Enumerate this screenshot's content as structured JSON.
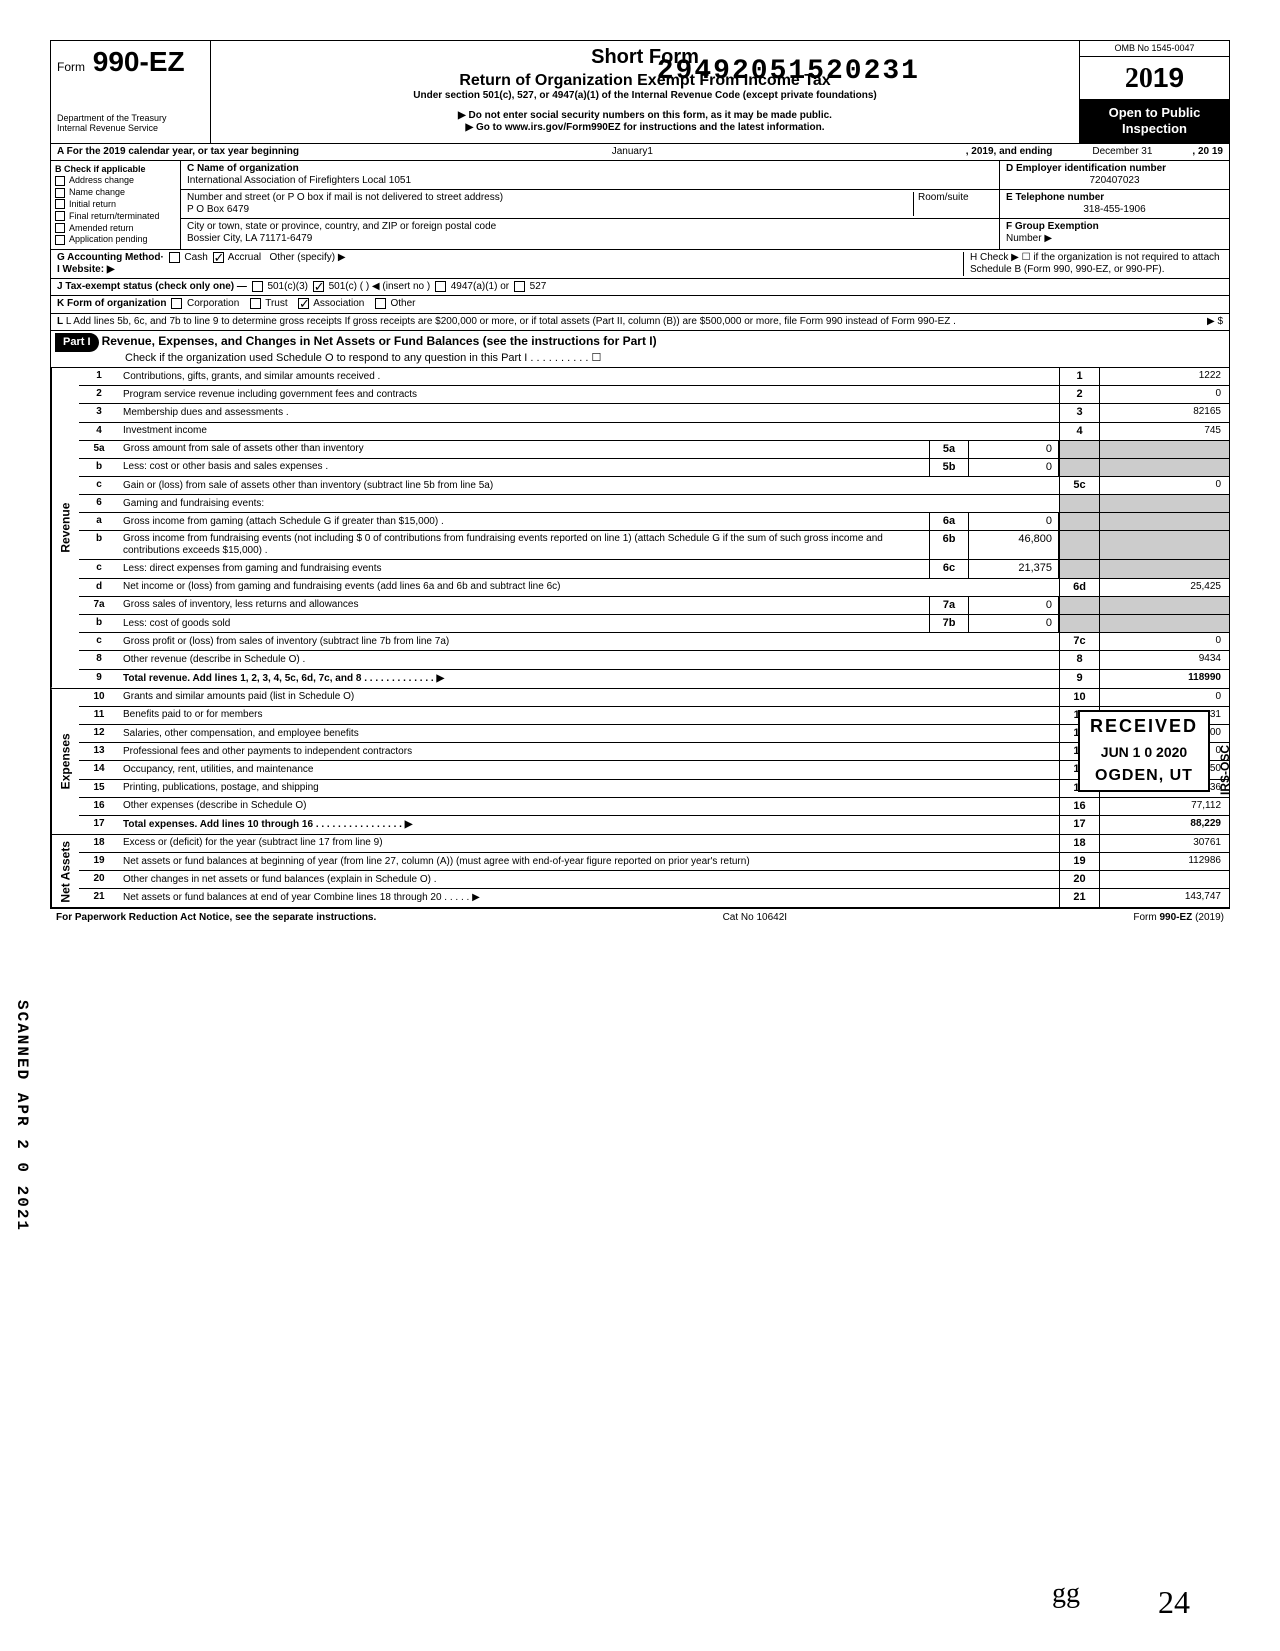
{
  "stamp_number": "29492051520231",
  "form": {
    "prefix": "Form",
    "number": "990-EZ",
    "title_short": "Short Form",
    "title": "Return of Organization Exempt From Income Tax",
    "subtitle": "Under section 501(c), 527, or 4947(a)(1) of the Internal Revenue Code (except private foundations)",
    "ssn_warn": "▶ Do not enter social security numbers on this form, as it may be made public.",
    "goto": "▶ Go to www.irs.gov/Form990EZ for instructions and the latest information.",
    "dept": "Department of the Treasury",
    "irs": "Internal Revenue Service",
    "omb": "OMB No 1545-0047",
    "year": "2019",
    "open1": "Open to Public",
    "open2": "Inspection"
  },
  "rowA": {
    "label": "A For the 2019 calendar year, or tax year beginning",
    "begin": "January1",
    "mid": ", 2019, and ending",
    "end": "December 31",
    "yr": ", 20  19"
  },
  "colB": {
    "header": "B Check if applicable",
    "items": [
      "Address change",
      "Name change",
      "Initial return",
      "Final return/terminated",
      "Amended return",
      "Application pending"
    ]
  },
  "org": {
    "c_label": "C Name of organization",
    "name": "International Association of Firefighters Local 1051",
    "addr_label": "Number and street (or P O  box if mail is not delivered to street address)",
    "room_label": "Room/suite",
    "addr": "P O  Box 6479",
    "city_label": "City or town, state or province, country, and ZIP or foreign postal code",
    "city": "Bossier City, LA 71171-6479"
  },
  "right": {
    "d_label": "D Employer identification number",
    "ein": "720407023",
    "e_label": "E Telephone number",
    "phone": "318-455-1906",
    "f_label": "F Group Exemption",
    "f_sub": "Number ▶"
  },
  "lineG": "G  Accounting Method·",
  "g_cash": "Cash",
  "g_accrual": "Accrual",
  "g_other": "Other (specify) ▶",
  "lineI": "I  Website: ▶",
  "lineH": "H Check ▶ ☐ if the organization is not required to attach Schedule B (Form 990, 990-EZ, or 990-PF).",
  "lineJ": "J  Tax-exempt status (check only one) —",
  "j_5013": "501(c)(3)",
  "j_501c": "501(c) (",
  "j_insert": ") ◀ (insert no )",
  "j_4947": "4947(a)(1) or",
  "j_527": "527",
  "lineK": "K  Form of organization",
  "k_corp": "Corporation",
  "k_trust": "Trust",
  "k_assoc": "Association",
  "k_other": "Other",
  "lineL": "L  Add lines 5b, 6c, and 7b to line 9 to determine gross receipts  If gross receipts are $200,000 or more, or if total assets (Part II, column (B)) are $500,000 or more, file Form 990 instead of Form 990-EZ .",
  "L_arrow": "▶   $",
  "part1": {
    "label": "Part I",
    "title": "Revenue, Expenses, and Changes in Net Assets or Fund Balances (see the instructions for Part I)",
    "check": "Check if the organization used Schedule O to respond to any question in this Part I  .  .  .  .  .  .  .  .  .  .  ☐"
  },
  "sidelabels": {
    "rev": "Revenue",
    "exp": "Expenses",
    "net": "Net Assets"
  },
  "rows": {
    "1": {
      "n": "1",
      "d": "Contributions, gifts, grants, and similar amounts received .",
      "v": "1222"
    },
    "2": {
      "n": "2",
      "d": "Program service revenue including government fees and contracts",
      "v": "0"
    },
    "3": {
      "n": "3",
      "d": "Membership dues and assessments .",
      "v": "82165"
    },
    "4": {
      "n": "4",
      "d": "Investment income",
      "v": "745"
    },
    "5a": {
      "n": "5a",
      "d": "Gross amount from sale of assets other than inventory",
      "mn": "5a",
      "mv": "0"
    },
    "5b": {
      "n": "b",
      "d": "Less: cost or other basis and sales expenses .",
      "mn": "5b",
      "mv": "0"
    },
    "5c": {
      "n": "c",
      "d": "Gain or (loss) from sale of assets other than inventory (subtract line 5b from line 5a)",
      "rn": "5c",
      "v": "0"
    },
    "6": {
      "n": "6",
      "d": "Gaming and fundraising events:"
    },
    "6a": {
      "n": "a",
      "d": "Gross income from gaming (attach Schedule G if greater than $15,000) .",
      "mn": "6a",
      "mv": "0"
    },
    "6b": {
      "n": "b",
      "d": "Gross income from fundraising events (not including  $              0 of contributions from fundraising events reported on line 1) (attach Schedule G if the sum of such gross income and contributions exceeds $15,000) .",
      "mn": "6b",
      "mv": "46,800"
    },
    "6c": {
      "n": "c",
      "d": "Less: direct expenses from gaming and fundraising events",
      "mn": "6c",
      "mv": "21,375"
    },
    "6d": {
      "n": "d",
      "d": "Net income or (loss) from gaming and fundraising events (add lines 6a and 6b and subtract line 6c)",
      "rn": "6d",
      "v": "25,425"
    },
    "7a": {
      "n": "7a",
      "d": "Gross sales of inventory, less returns and allowances",
      "mn": "7a",
      "mv": "0"
    },
    "7b": {
      "n": "b",
      "d": "Less: cost of goods sold",
      "mn": "7b",
      "mv": "0"
    },
    "7c": {
      "n": "c",
      "d": "Gross profit or (loss) from sales of inventory (subtract line 7b from line 7a)",
      "rn": "7c",
      "v": "0"
    },
    "8": {
      "n": "8",
      "d": "Other revenue (describe in Schedule O) .",
      "v": "9434"
    },
    "9": {
      "n": "9",
      "d": "Total revenue. Add lines 1, 2, 3, 4, 5c, 6d, 7c, and 8   .   .   .   .   .   .   .   .   .   .   .   .   .   ▶",
      "v": "118990",
      "bold": true
    },
    "10": {
      "n": "10",
      "d": "Grants and similar amounts paid (list in Schedule O)",
      "v": "0"
    },
    "11": {
      "n": "11",
      "d": "Benefits paid to or for members",
      "v": "2331"
    },
    "12": {
      "n": "12",
      "d": "Salaries, other compensation, and employee benefits",
      "v": "6100"
    },
    "13": {
      "n": "13",
      "d": "Professional fees and other payments to independent contractors",
      "v": "0"
    },
    "14": {
      "n": "14",
      "d": "Occupancy, rent, utilities, and maintenance",
      "v": "750"
    },
    "15": {
      "n": "15",
      "d": "Printing, publications, postage, and shipping",
      "v": "1936"
    },
    "16": {
      "n": "16",
      "d": "Other expenses (describe in Schedule O)",
      "v": "77,112"
    },
    "17": {
      "n": "17",
      "d": "Total expenses. Add lines 10 through 16   .   .   .   .   .   .   .   .   .   .   .   .   .   .   .   .   ▶",
      "v": "88,229",
      "bold": true
    },
    "18": {
      "n": "18",
      "d": "Excess or (deficit) for the year (subtract line 17 from line 9)",
      "v": "30761"
    },
    "19": {
      "n": "19",
      "d": "Net assets or fund balances at beginning of year (from line 27, column (A)) (must agree with end-of-year figure reported on prior year's return)",
      "v": "112986"
    },
    "20": {
      "n": "20",
      "d": "Other changes in net assets or fund balances (explain in Schedule O) .",
      "v": ""
    },
    "21": {
      "n": "21",
      "d": "Net assets or fund balances at end of year  Combine lines 18 through 20   .   .   .   .   .   ▶",
      "v": "143,747"
    }
  },
  "footer": {
    "left": "For Paperwork Reduction Act Notice, see the separate instructions.",
    "mid": "Cat  No  10642I",
    "right": "Form 990-EZ (2019)"
  },
  "scanned": "SCANNED APR 2 0 2021",
  "received": {
    "r1": "RECEIVED",
    "r2": "JUN 1 0 2020",
    "r3": "OGDEN, UT"
  },
  "irs_osc": "IRS-OSC",
  "hand24": "24"
}
